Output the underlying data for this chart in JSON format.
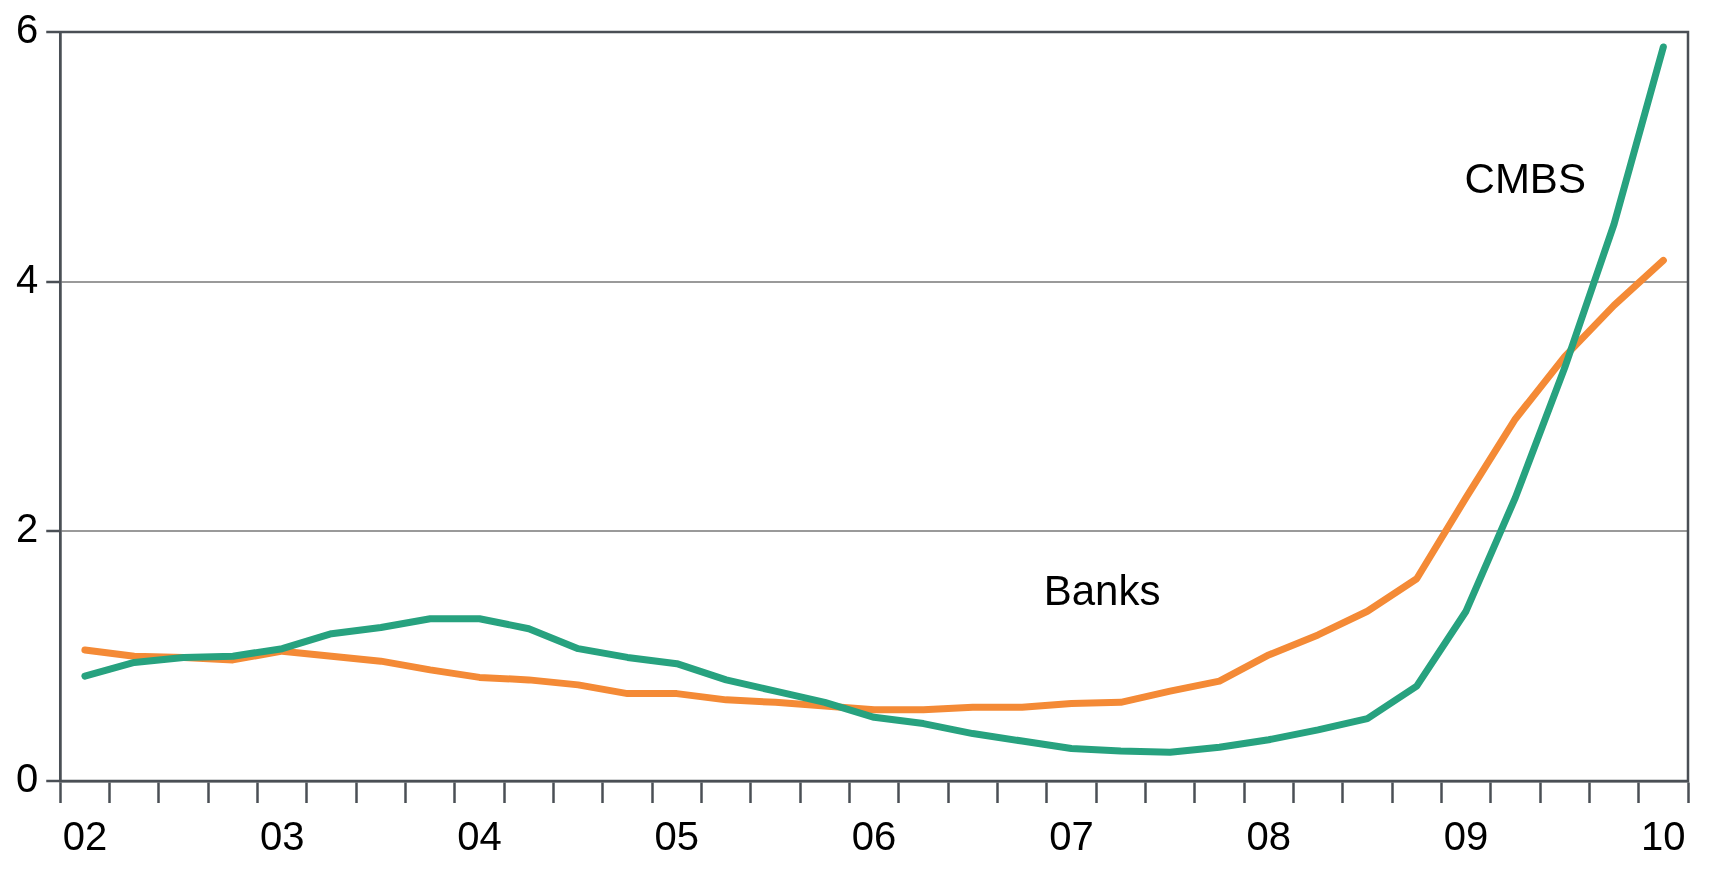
{
  "chart_data": {
    "type": "line",
    "categories": [
      "02",
      null,
      null,
      null,
      "03",
      null,
      null,
      null,
      "04",
      null,
      null,
      null,
      "05",
      null,
      null,
      null,
      "06",
      null,
      null,
      null,
      "07",
      null,
      null,
      null,
      "08",
      null,
      null,
      null,
      "09",
      null,
      null,
      null,
      "10"
    ],
    "series": [
      {
        "name": "CMBS",
        "color": "#27a27f",
        "values": [
          0.84,
          0.95,
          0.99,
          1.0,
          1.06,
          1.18,
          1.23,
          1.3,
          1.3,
          1.22,
          1.06,
          0.99,
          0.94,
          0.81,
          0.72,
          0.63,
          0.51,
          0.46,
          0.38,
          0.32,
          0.26,
          0.24,
          0.23,
          0.27,
          0.33,
          0.41,
          0.5,
          0.76,
          1.36,
          2.27,
          3.31,
          4.46,
          5.88
        ]
      },
      {
        "name": "Banks",
        "color": "#f48a36",
        "values": [
          1.05,
          1.0,
          0.99,
          0.97,
          1.04,
          1.0,
          0.96,
          0.89,
          0.83,
          0.81,
          0.77,
          0.7,
          0.7,
          0.65,
          0.63,
          0.6,
          0.57,
          0.57,
          0.59,
          0.59,
          0.62,
          0.63,
          0.72,
          0.8,
          1.01,
          1.17,
          1.36,
          1.62,
          2.27,
          2.9,
          3.4,
          3.81,
          4.17
        ]
      }
    ],
    "ylim": [
      0,
      6
    ],
    "yticks": [
      0,
      2,
      4,
      6
    ],
    "grid": "y",
    "legend": false,
    "marker": "none",
    "line_style": "solid"
  }
}
